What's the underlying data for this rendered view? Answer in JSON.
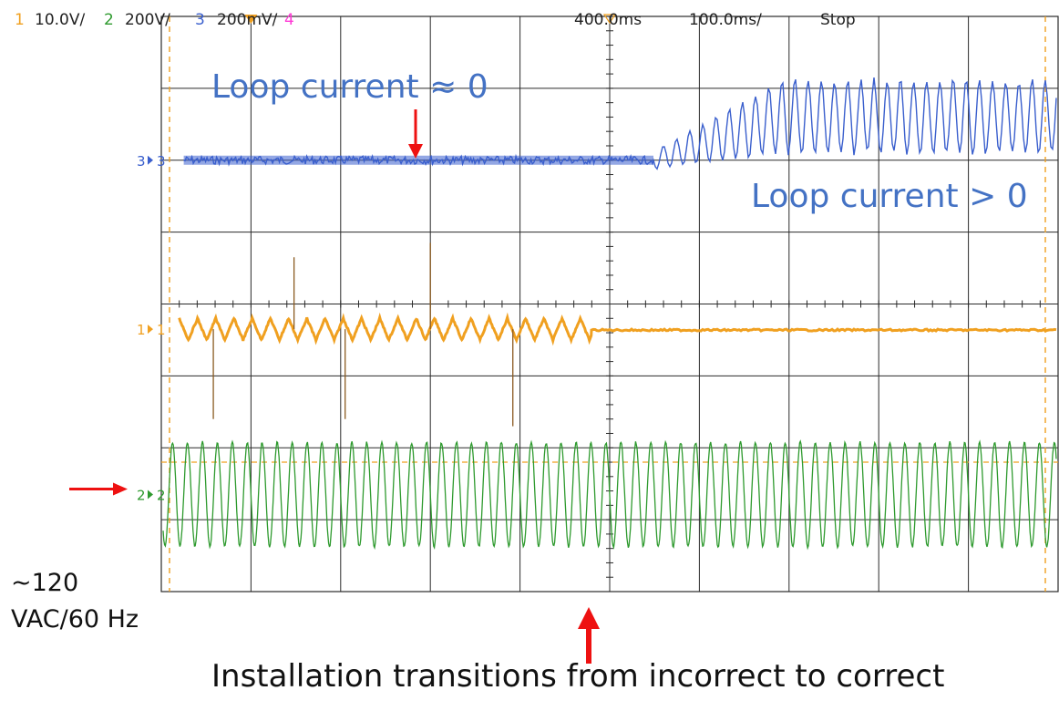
{
  "header": {
    "ch1_num": "1",
    "ch1_scale": "10.0V/",
    "ch2_num": "2",
    "ch2_scale": "200V/",
    "ch3_num": "3",
    "ch3_scale": "200mV/",
    "ch4_num": "4",
    "delay": "400.0ms",
    "timebase": "100.0ms/",
    "run_state": "Stop"
  },
  "colors": {
    "ch1": "#f0a020",
    "ch2": "#2e9a2e",
    "ch3": "#3a5fcd",
    "ch4": "#ff3cd6",
    "annotation_blue": "#4472c4",
    "arrow": "#ee1111",
    "grid": "#2a2a2a"
  },
  "channel_markers": {
    "ch1": "1",
    "ch2": "2",
    "ch3": "3"
  },
  "annotations": {
    "loop_zero": "Loop current ≈ 0",
    "loop_positive": "Loop current > 0",
    "ac_line1": "~120",
    "ac_line2": "VAC/60 Hz",
    "transition": "Installation transitions from incorrect to correct"
  },
  "chart_data": {
    "type": "line",
    "grid": {
      "x_divisions": 10,
      "y_divisions": 8,
      "visible": true
    },
    "x_unit": "ms",
    "xlim_div": [
      0,
      10
    ],
    "transition_time_div": 5,
    "series": [
      {
        "name": "3",
        "values_description_note": "",
        "before_transition_level_div": 2.0,
        "after_transition_amplitude_div": 1.1,
        "after_transition_center_div": 1.4
      },
      {
        "name": "1",
        "before_transition_amplitude_div": 0.15,
        "level_div": 4.35,
        "spike_times_div": [
          1.5,
          3.0,
          1.9,
          3.9
        ]
      },
      {
        "name": "2",
        "level_div": 6.65,
        "amplitude_div": 1.45,
        "cycles": 60
      }
    ]
  }
}
